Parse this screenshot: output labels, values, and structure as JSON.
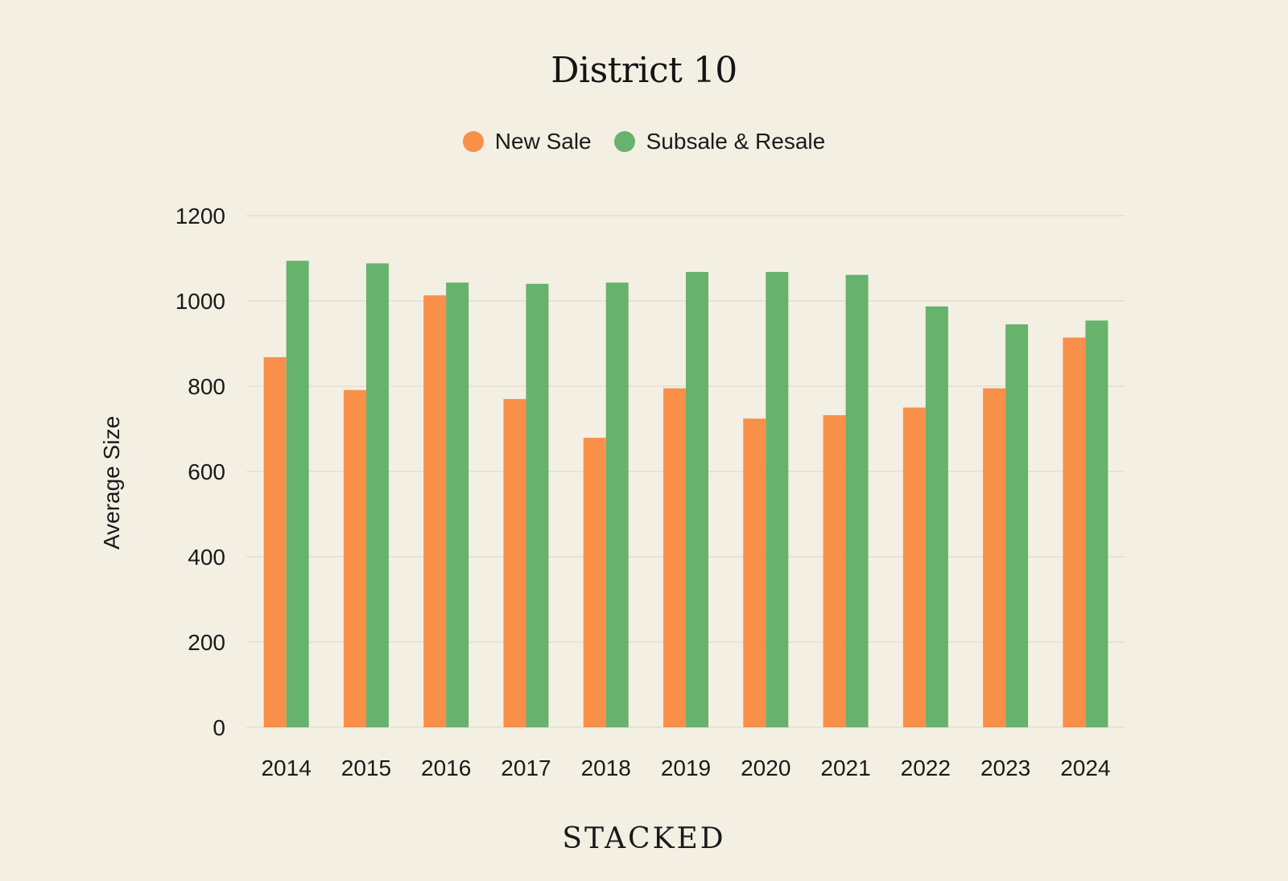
{
  "brand": "STACKED",
  "colors": {
    "background": "#f4efe3",
    "grid": "#e4dfd3"
  },
  "chart_data": {
    "type": "bar",
    "title": "District 10",
    "xlabel": "",
    "ylabel": "Average Size",
    "ylim": [
      0,
      1200
    ],
    "yticks": [
      0,
      200,
      400,
      600,
      800,
      1000,
      1200
    ],
    "grid": true,
    "legend_position": "top-center",
    "categories": [
      "2014",
      "2015",
      "2016",
      "2017",
      "2018",
      "2019",
      "2020",
      "2021",
      "2022",
      "2023",
      "2024"
    ],
    "series": [
      {
        "name": "New Sale",
        "color": "#f8904a",
        "values": [
          868,
          791,
          1013,
          770,
          679,
          795,
          724,
          732,
          750,
          795,
          914
        ]
      },
      {
        "name": "Subsale & Resale",
        "color": "#67b26c",
        "values": [
          1094,
          1088,
          1043,
          1040,
          1043,
          1068,
          1068,
          1061,
          987,
          945,
          954
        ]
      }
    ]
  }
}
